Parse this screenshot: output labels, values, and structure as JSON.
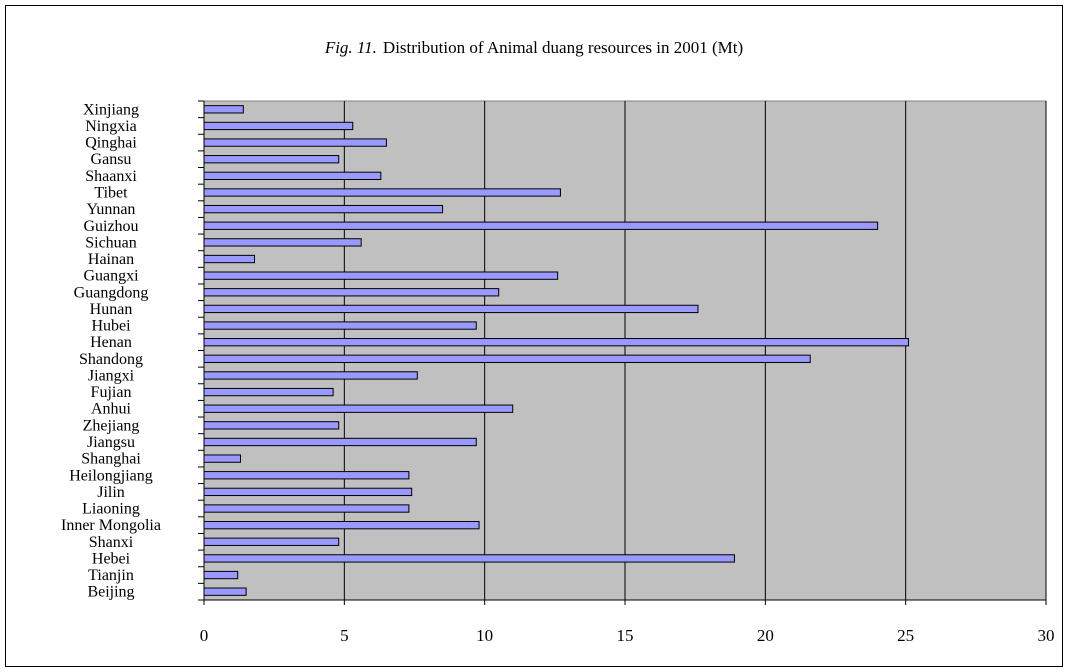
{
  "chart_data": {
    "type": "bar",
    "orientation": "horizontal",
    "title_prefix": "Fig. 11.",
    "title": "Distribution of Animal duang resources in 2001 (Mt)",
    "categories": [
      "Xinjiang",
      "Ningxia",
      "Qinghai",
      "Gansu",
      "Shaanxi",
      "Tibet",
      "Yunnan",
      "Guizhou",
      "Sichuan",
      "Hainan",
      "Guangxi",
      "Guangdong",
      "Hunan",
      "Hubei",
      "Henan",
      "Shandong",
      "Jiangxi",
      "Fujian",
      "Anhui",
      "Zhejiang",
      "Jiangsu",
      "Shanghai",
      "Heilongjiang",
      "Jilin",
      "Liaoning",
      "Inner Mongolia",
      "Shanxi",
      "Hebei",
      "Tianjin",
      "Beijing"
    ],
    "values": [
      1.4,
      5.3,
      6.5,
      4.8,
      6.3,
      12.7,
      8.5,
      24.0,
      5.6,
      1.8,
      12.6,
      10.5,
      17.6,
      9.7,
      25.1,
      21.6,
      7.6,
      4.6,
      11.0,
      4.8,
      9.7,
      1.3,
      7.3,
      7.4,
      7.3,
      9.8,
      4.8,
      18.9,
      1.2,
      1.5
    ],
    "xlim": [
      0,
      30
    ],
    "xticks": [
      0,
      5,
      10,
      15,
      20,
      25,
      30
    ],
    "grid": "vertical",
    "legend": "none",
    "colors": {
      "bar_fill": "#9999ff",
      "bar_stroke": "#000000",
      "plot_background": "#c0c0c0"
    }
  }
}
